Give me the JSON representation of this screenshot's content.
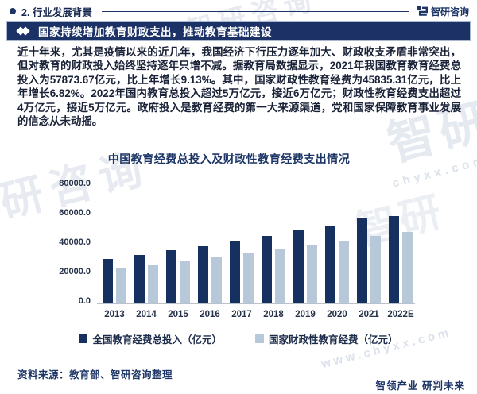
{
  "header": {
    "section_title": "2. 行业发展背景",
    "brand": "智研咨询"
  },
  "banner": {
    "title": "国家持续增加教育财政支出，推动教育基础建设"
  },
  "paragraph": "近十年来，尤其是疫情以来的近几年，我国经济下行压力逐年加大、财政收支矛盾非常突出，但对教育的财政投入始终坚持逐年只增不减。据教育局数据显示，2021年我国教育教育经费总投入为57873.67亿元，比上年增长9.13%。其中，国家财政性教育经费为45835.31亿元，比上年增长6.82%。2022年国内教育总投入超过5万亿元，接近6万亿元；财政性教育经费支出超过4万亿元，接近5万亿元。政府投入是教育经费的第一大来源渠道，党和国家保障教育事业发展的信念从未动摇。",
  "chart_data": {
    "type": "bar",
    "title": "中国教育经费总投入及财政性教育经费支出情况",
    "categories": [
      "2013",
      "2014",
      "2015",
      "2016",
      "2017",
      "2018",
      "2019",
      "2020",
      "2021",
      "2022E"
    ],
    "series": [
      {
        "name": "全国教育经费总投入（亿元）",
        "color": "#16305f",
        "values": [
          30400,
          32800,
          36100,
          38900,
          42600,
          46100,
          50200,
          53000,
          57873.67,
          59600
        ]
      },
      {
        "name": "国家财政性教育经费（亿元）",
        "color": "#b7c9d8",
        "values": [
          24500,
          26400,
          29200,
          31400,
          34200,
          37000,
          40000,
          42900,
          45835.31,
          48600
        ]
      }
    ],
    "ylim": [
      0,
      80000
    ],
    "ytick_step": 20000,
    "ytick_labels": [
      "0.0",
      "20000.0",
      "40000.0",
      "60000.0",
      "80000.0"
    ],
    "grid": false,
    "legend_position": "bottom"
  },
  "footer": {
    "source": "资料来源：教育部、智研咨询整理",
    "tagline": "智领产业 研判未来"
  },
  "watermark": {
    "brand": "智研咨询",
    "brand_short": "智研",
    "site": "www.chyxx.com",
    "site_short": "chyxx.com"
  },
  "colors": {
    "navy": "#1c3166",
    "bar_dark": "#16305f",
    "bar_light": "#b7c9d8"
  }
}
